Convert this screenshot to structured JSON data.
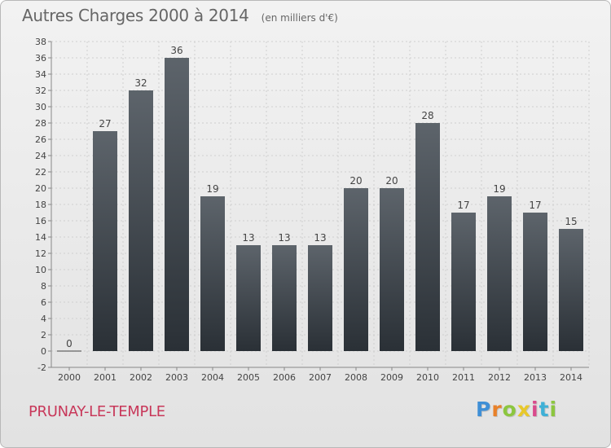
{
  "header": {
    "title": "Autres Charges 2000 à 2014",
    "subtitle": "(en milliers d'€)"
  },
  "footer": {
    "town": "PRUNAY-LE-TEMPLE",
    "logo_letters": [
      "P",
      "r",
      "o",
      "x",
      "i",
      "t",
      "i"
    ],
    "logo_colors": [
      "#3f8fd6",
      "#e8812a",
      "#8cc63f",
      "#e8c82a",
      "#d94a8c",
      "#3fb0d6",
      "#8cc63f"
    ]
  },
  "colors": {
    "bar_top": "#5d646b",
    "bar_bottom": "#2a3036",
    "axis": "#888888",
    "grid": "#cfcfcf"
  },
  "chart_data": {
    "type": "bar",
    "categories": [
      "2000",
      "2001",
      "2002",
      "2003",
      "2004",
      "2005",
      "2006",
      "2007",
      "2008",
      "2009",
      "2010",
      "2011",
      "2012",
      "2013",
      "2014"
    ],
    "values": [
      0,
      27,
      32,
      36,
      19,
      13,
      13,
      13,
      20,
      20,
      28,
      17,
      19,
      17,
      15
    ],
    "value_labels": [
      "0",
      "27",
      "32",
      "36",
      "19",
      "13",
      "13",
      "13",
      "20",
      "20",
      "28",
      "17",
      "19",
      "17",
      "15"
    ],
    "yticks": [
      "-2",
      "0",
      "2",
      "4",
      "6",
      "8",
      "10",
      "12",
      "14",
      "16",
      "18",
      "20",
      "22",
      "24",
      "26",
      "28",
      "30",
      "32",
      "34",
      "36",
      "38"
    ],
    "ylim": [
      -2,
      38
    ],
    "title": "Autres Charges 2000 à 2014",
    "xlabel": "",
    "ylabel": "",
    "grid": true
  }
}
